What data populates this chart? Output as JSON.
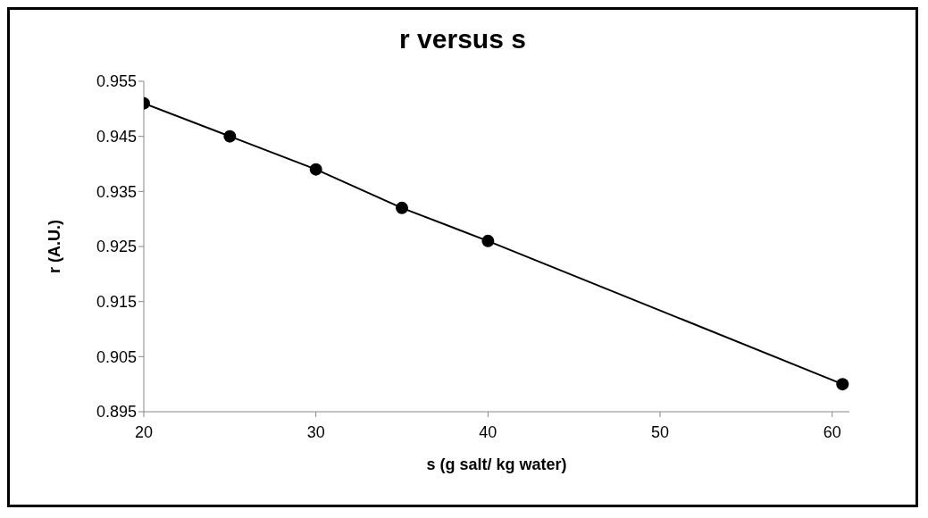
{
  "chart_data": {
    "type": "line",
    "title": "r versus s",
    "xlabel": "s (g salt/ kg water)",
    "ylabel": "r (A.U.)",
    "x": [
      20,
      25,
      30,
      35,
      40,
      60.6
    ],
    "series": [
      {
        "color": "#000000",
        "values": [
          0.951,
          0.945,
          0.939,
          0.932,
          0.926,
          0.9
        ]
      }
    ],
    "xlim": [
      20,
      61
    ],
    "xticks": [
      20,
      30,
      40,
      50,
      60
    ],
    "ylim": [
      0.895,
      0.955
    ],
    "yticks": [
      {
        "value": 0.895,
        "label": "0.895"
      },
      {
        "value": 0.905,
        "label": "0.905"
      },
      {
        "value": 0.915,
        "label": "0.915"
      },
      {
        "value": 0.925,
        "label": "0.925"
      },
      {
        "value": 0.935,
        "label": "0.935"
      },
      {
        "value": 0.945,
        "label": "0.945"
      },
      {
        "value": 0.955,
        "label": "0.955"
      }
    ],
    "grid": false,
    "legend": false,
    "marker": "circle",
    "line_style": "solid"
  }
}
